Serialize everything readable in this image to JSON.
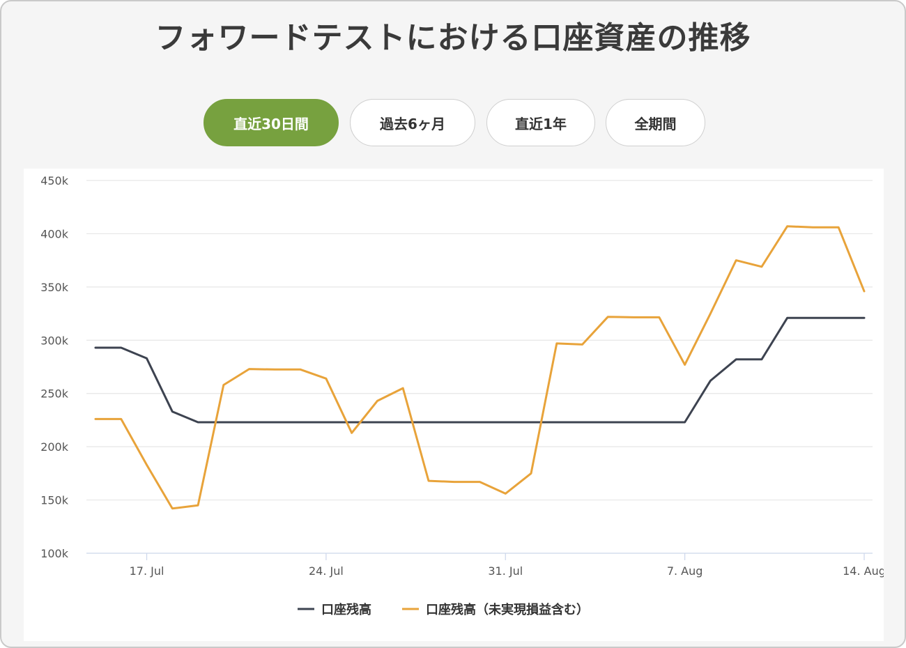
{
  "title": "フォワードテストにおける口座資産の推移",
  "tabs": [
    {
      "label": "直近30日間",
      "active": true
    },
    {
      "label": "過去6ヶ月",
      "active": false
    },
    {
      "label": "直近1年",
      "active": false
    },
    {
      "label": "全期間",
      "active": false
    }
  ],
  "colors": {
    "accent": "#77a13f",
    "series_balance": "#3d4350",
    "series_equity": "#e8a33a"
  },
  "chart_data": {
    "type": "line",
    "ylim": [
      100000,
      450000
    ],
    "y_ticks": [
      "100k",
      "150k",
      "200k",
      "250k",
      "300k",
      "350k",
      "400k",
      "450k"
    ],
    "y_tick_values": [
      100000,
      150000,
      200000,
      250000,
      300000,
      350000,
      400000,
      450000
    ],
    "x_ticks": [
      "17. Jul",
      "24. Jul",
      "31. Jul",
      "7. Aug",
      "14. Aug"
    ],
    "x_tick_dates": [
      "2023-07-17",
      "2023-07-24",
      "2023-07-31",
      "2023-08-07",
      "2023-08-14"
    ],
    "x": [
      "2023-07-15",
      "2023-07-16",
      "2023-07-17",
      "2023-07-18",
      "2023-07-19",
      "2023-07-20",
      "2023-07-21",
      "2023-07-22",
      "2023-07-23",
      "2023-07-24",
      "2023-07-25",
      "2023-07-26",
      "2023-07-27",
      "2023-07-28",
      "2023-07-29",
      "2023-07-30",
      "2023-07-31",
      "2023-08-01",
      "2023-08-02",
      "2023-08-03",
      "2023-08-04",
      "2023-08-05",
      "2023-08-06",
      "2023-08-07",
      "2023-08-08",
      "2023-08-09",
      "2023-08-10",
      "2023-08-11",
      "2023-08-12",
      "2023-08-13",
      "2023-08-14"
    ],
    "grid": true,
    "legend_position": "bottom-center",
    "series": [
      {
        "name": "口座残高",
        "color": "#3d4350",
        "values": [
          293000,
          293000,
          283000,
          233000,
          223000,
          223000,
          223000,
          223000,
          223000,
          223000,
          223000,
          223000,
          223000,
          223000,
          223000,
          223000,
          223000,
          223000,
          223000,
          223000,
          223000,
          223000,
          223000,
          223000,
          262000,
          282000,
          282000,
          321000,
          321000,
          321000,
          321000
        ]
      },
      {
        "name": "口座残高（未実現損益含む）",
        "color": "#e8a33a",
        "values": [
          226000,
          226000,
          183000,
          142000,
          145000,
          258000,
          273000,
          272500,
          272500,
          264000,
          213000,
          243000,
          255000,
          168000,
          167000,
          167000,
          156000,
          175000,
          297000,
          296000,
          322000,
          321500,
          321500,
          277000,
          325000,
          375000,
          369000,
          407000,
          406000,
          406000,
          346000
        ]
      }
    ]
  }
}
